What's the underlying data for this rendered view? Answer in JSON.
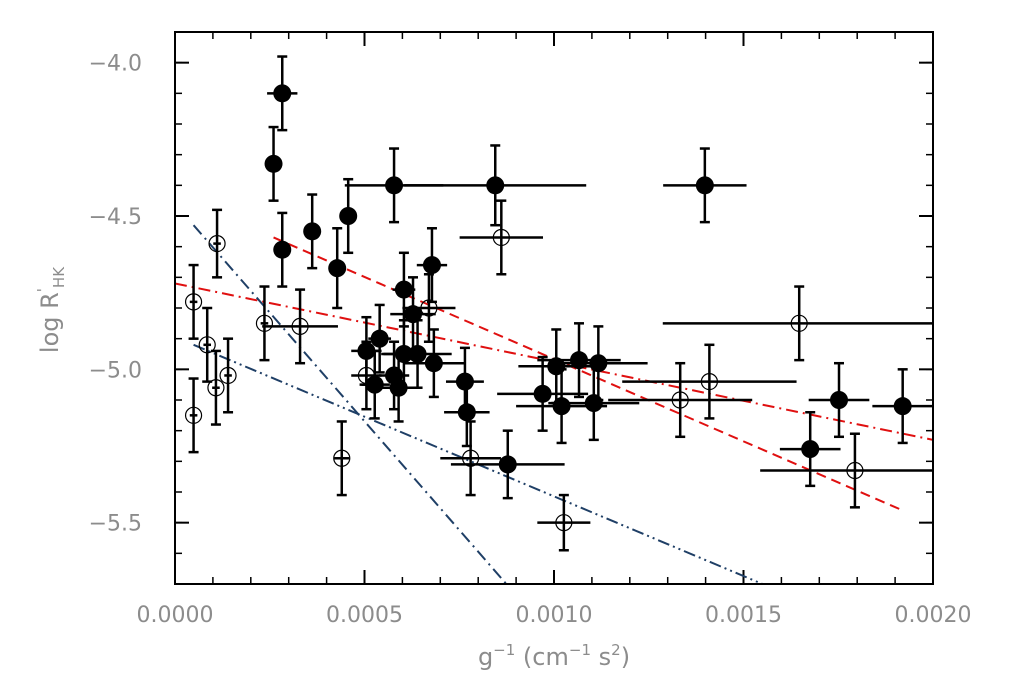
{
  "chart_data": {
    "type": "scatter",
    "title": "",
    "xlabel": {
      "base": "g",
      "sup": "−1",
      "rest_open": " (cm",
      "sup2": "−1",
      "mid": " s",
      "sup3": "2",
      "rest_close": ")"
    },
    "ylabel": {
      "base": "log R",
      "sup": "'",
      "sub": "HK"
    },
    "xlim": [
      0.0,
      0.002
    ],
    "ylim": [
      -5.7,
      -3.9
    ],
    "x_ticks": [
      0.0,
      0.0005,
      0.001,
      0.0015,
      0.002
    ],
    "x_tick_labels": [
      "0.0000",
      "0.0005",
      "0.0010",
      "0.0015",
      "0.0020"
    ],
    "y_ticks": [
      -4.0,
      -4.5,
      -5.0,
      -5.5
    ],
    "y_tick_labels": [
      "−4.0",
      "−4.5",
      "−5.0",
      "−5.5"
    ],
    "grid": false,
    "legend": "none",
    "colors": {
      "red": "#e01010",
      "blue": "#1f3f66",
      "points": "#000000",
      "axis_text": "#8c8c8c"
    },
    "series": [
      {
        "marker": "filled-circle",
        "points": [
          {
            "x": 0.000283,
            "y": -4.1,
            "xerr": 4e-05,
            "yerr": 0.12
          },
          {
            "x": 0.00026,
            "y": -4.33,
            "xerr": 1e-05,
            "yerr": 0.12
          },
          {
            "x": 0.000283,
            "y": -4.61,
            "xerr": 1e-05,
            "yerr": 0.12
          },
          {
            "x": 0.000362,
            "y": -4.55,
            "xerr": 2e-05,
            "yerr": 0.12
          },
          {
            "x": 0.000457,
            "y": -4.5,
            "xerr": 2e-05,
            "yerr": 0.12
          },
          {
            "x": 0.000428,
            "y": -4.67,
            "xerr": 2e-05,
            "yerr": 0.13
          },
          {
            "x": 0.000578,
            "y": -4.4,
            "xerr": 0.00013,
            "yerr": 0.12
          },
          {
            "x": 0.000845,
            "y": -4.4,
            "xerr": 0.00024,
            "yerr": 0.13
          },
          {
            "x": 0.001398,
            "y": -4.4,
            "xerr": 0.00011,
            "yerr": 0.12
          },
          {
            "x": 0.000678,
            "y": -4.66,
            "xerr": 4e-05,
            "yerr": 0.12
          },
          {
            "x": 0.000604,
            "y": -4.74,
            "xerr": 3e-05,
            "yerr": 0.12
          },
          {
            "x": 0.000628,
            "y": -4.82,
            "xerr": 6e-05,
            "yerr": 0.12
          },
          {
            "x": 0.000505,
            "y": -4.94,
            "xerr": 4e-05,
            "yerr": 0.11
          },
          {
            "x": 0.00054,
            "y": -4.9,
            "xerr": 3e-05,
            "yerr": 0.11
          },
          {
            "x": 0.000578,
            "y": -5.02,
            "xerr": 4e-05,
            "yerr": 0.11
          },
          {
            "x": 0.000604,
            "y": -4.95,
            "xerr": 6e-05,
            "yerr": 0.11
          },
          {
            "x": 0.00064,
            "y": -4.95,
            "xerr": 9e-05,
            "yerr": 0.11
          },
          {
            "x": 0.000683,
            "y": -4.98,
            "xerr": 8e-05,
            "yerr": 0.11
          },
          {
            "x": 0.000527,
            "y": -5.05,
            "xerr": 4e-05,
            "yerr": 0.11
          },
          {
            "x": 0.00059,
            "y": -5.06,
            "xerr": 5e-05,
            "yerr": 0.11
          },
          {
            "x": 0.000765,
            "y": -5.04,
            "xerr": 5e-05,
            "yerr": 0.11
          },
          {
            "x": 0.00077,
            "y": -5.14,
            "xerr": 6e-05,
            "yerr": 0.11
          },
          {
            "x": 0.000878,
            "y": -5.31,
            "xerr": 0.00015,
            "yerr": 0.11
          },
          {
            "x": 0.00097,
            "y": -5.08,
            "xerr": 0.00012,
            "yerr": 0.12
          },
          {
            "x": 0.001006,
            "y": -4.99,
            "xerr": 0.0001,
            "yerr": 0.12
          },
          {
            "x": 0.00102,
            "y": -5.12,
            "xerr": 0.00012,
            "yerr": 0.12
          },
          {
            "x": 0.001066,
            "y": -4.97,
            "xerr": 0.00011,
            "yerr": 0.12
          },
          {
            "x": 0.001117,
            "y": -4.98,
            "xerr": 0.00013,
            "yerr": 0.12
          },
          {
            "x": 0.001105,
            "y": -5.11,
            "xerr": 0.00012,
            "yerr": 0.12
          },
          {
            "x": 0.001752,
            "y": -5.1,
            "xerr": 8e-05,
            "yerr": 0.12
          },
          {
            "x": 0.00192,
            "y": -5.12,
            "xerr": 8e-05,
            "yerr": 0.12
          },
          {
            "x": 0.001676,
            "y": -5.26,
            "xerr": 8e-05,
            "yerr": 0.12
          }
        ]
      },
      {
        "marker": "open-circle",
        "points": [
          {
            "x": 0.000111,
            "y": -4.59,
            "xerr": 1e-05,
            "yerr": 0.11
          },
          {
            "x": 4.9e-05,
            "y": -4.78,
            "xerr": 1e-05,
            "yerr": 0.12
          },
          {
            "x": 8.5e-05,
            "y": -4.92,
            "xerr": 1e-05,
            "yerr": 0.12
          },
          {
            "x": 0.000108,
            "y": -5.06,
            "xerr": 1e-05,
            "yerr": 0.12
          },
          {
            "x": 0.00014,
            "y": -5.02,
            "xerr": 1e-05,
            "yerr": 0.12
          },
          {
            "x": 4.9e-05,
            "y": -5.15,
            "xerr": 1e-05,
            "yerr": 0.12
          },
          {
            "x": 0.000236,
            "y": -4.85,
            "xerr": 1e-05,
            "yerr": 0.12
          },
          {
            "x": 0.00033,
            "y": -4.86,
            "xerr": 0.0001,
            "yerr": 0.12
          },
          {
            "x": 0.000505,
            "y": -5.02,
            "xerr": 4e-05,
            "yerr": 0.11
          },
          {
            "x": 0.00044,
            "y": -5.29,
            "xerr": 2e-05,
            "yerr": 0.12
          },
          {
            "x": 0.00067,
            "y": -4.8,
            "xerr": 7e-05,
            "yerr": 0.11
          },
          {
            "x": 0.000861,
            "y": -4.57,
            "xerr": 0.00011,
            "yerr": 0.12
          },
          {
            "x": 0.00078,
            "y": -5.29,
            "xerr": 8e-05,
            "yerr": 0.12
          },
          {
            "x": 0.001026,
            "y": -5.5,
            "xerr": 7e-05,
            "yerr": 0.09
          },
          {
            "x": 0.001333,
            "y": -5.1,
            "xerr": 0.00019,
            "yerr": 0.12
          },
          {
            "x": 0.00141,
            "y": -5.04,
            "xerr": 0.00023,
            "yerr": 0.12
          },
          {
            "x": 0.001647,
            "y": -4.85,
            "xerr": 0.00036,
            "yerr": 0.12
          },
          {
            "x": 0.001794,
            "y": -5.33,
            "xerr": 0.00025,
            "yerr": 0.12
          }
        ]
      }
    ],
    "fit_lines": [
      {
        "color": "red",
        "style": "dashed",
        "x": [
          0.00026,
          0.00192
        ],
        "y": [
          -4.57,
          -5.46
        ]
      },
      {
        "color": "red",
        "style": "dash-dot",
        "x": [
          0.0,
          0.002
        ],
        "y": [
          -4.72,
          -5.23
        ]
      },
      {
        "color": "blue",
        "style": "dash-dot",
        "x": [
          4.9e-05,
          0.0011
        ],
        "y": [
          -4.53,
          -6.02
        ]
      },
      {
        "color": "blue",
        "style": "dash-dot-dot",
        "x": [
          4.9e-05,
          0.00155
        ],
        "y": [
          -4.92,
          -5.7
        ]
      }
    ]
  }
}
